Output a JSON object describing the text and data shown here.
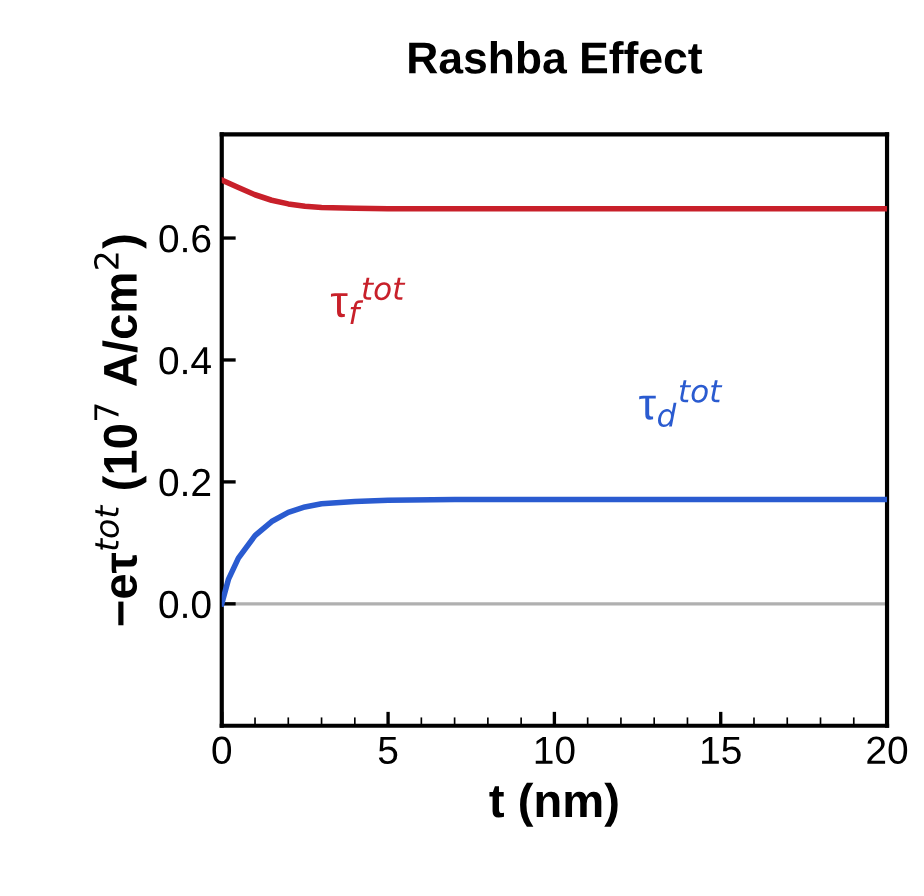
{
  "chart_data": {
    "type": "line",
    "title": "Rashba Effect",
    "xlabel": "t (nm)",
    "ylabel": "−eτ$^{tot}$ (10$^{7}$ A/cm$^{2}$)",
    "xlim": [
      0,
      20
    ],
    "xticks": [
      0,
      5,
      10,
      15,
      20
    ],
    "ylim": [
      -0.2,
      0.77
    ],
    "yticks": [
      {
        "value": 0,
        "label": "0.0"
      },
      {
        "value": 0.2,
        "label": "0.2"
      },
      {
        "value": 0.4,
        "label": "0.4"
      },
      {
        "value": 0.6,
        "label": "0.6"
      }
    ],
    "grid": false,
    "legend": false,
    "marker": "none",
    "line_style": "solid",
    "series": [
      {
        "name": "τ$_{f}$$^{tot}$",
        "color": "#c8202a",
        "x": [
          0,
          0.5,
          1,
          1.5,
          2,
          2.5,
          3,
          4,
          5,
          7,
          10,
          15,
          20
        ],
        "values": [
          0.695,
          0.683,
          0.671,
          0.662,
          0.656,
          0.652,
          0.65,
          0.649,
          0.648,
          0.648,
          0.648,
          0.648,
          0.648
        ]
      },
      {
        "name": "τ$_{d}$$^{tot}$",
        "color": "#2a5bd0",
        "x": [
          0,
          0.2,
          0.5,
          1,
          1.5,
          2,
          2.5,
          3,
          4,
          5,
          7,
          10,
          15,
          20
        ],
        "values": [
          0.0,
          0.04,
          0.075,
          0.112,
          0.135,
          0.15,
          0.159,
          0.164,
          0.168,
          0.17,
          0.171,
          0.171,
          0.171,
          0.171
        ]
      }
    ],
    "ref_lines": [
      {
        "axis": "y",
        "value": 0,
        "color": "#b0b0b0"
      }
    ]
  }
}
